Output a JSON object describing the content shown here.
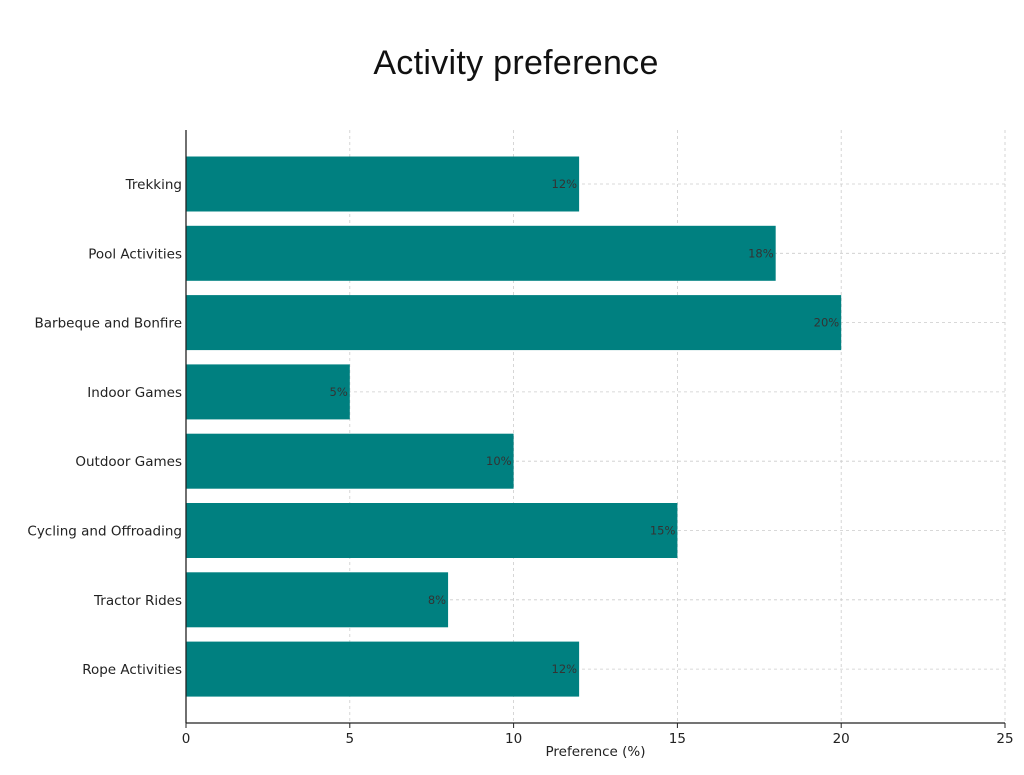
{
  "chart_data": {
    "type": "bar",
    "orientation": "horizontal",
    "title": "Activity preference",
    "xlabel": "Preference (%)",
    "ylabel": "",
    "categories": [
      "Trekking",
      "Pool Activities",
      "Barbeque and Bonfire",
      "Indoor Games",
      "Outdoor Games",
      "Cycling and Offroading",
      "Tractor Rides",
      "Rope Activities"
    ],
    "values": [
      12,
      18,
      20,
      5,
      10,
      15,
      8,
      12
    ],
    "data_labels": [
      "12%",
      "18%",
      "20%",
      "5%",
      "10%",
      "15%",
      "8%",
      "12%"
    ],
    "xlim": [
      0,
      25
    ],
    "xticks": [
      0,
      5,
      10,
      15,
      20,
      25
    ],
    "grid": true,
    "bar_color": "#008080"
  }
}
